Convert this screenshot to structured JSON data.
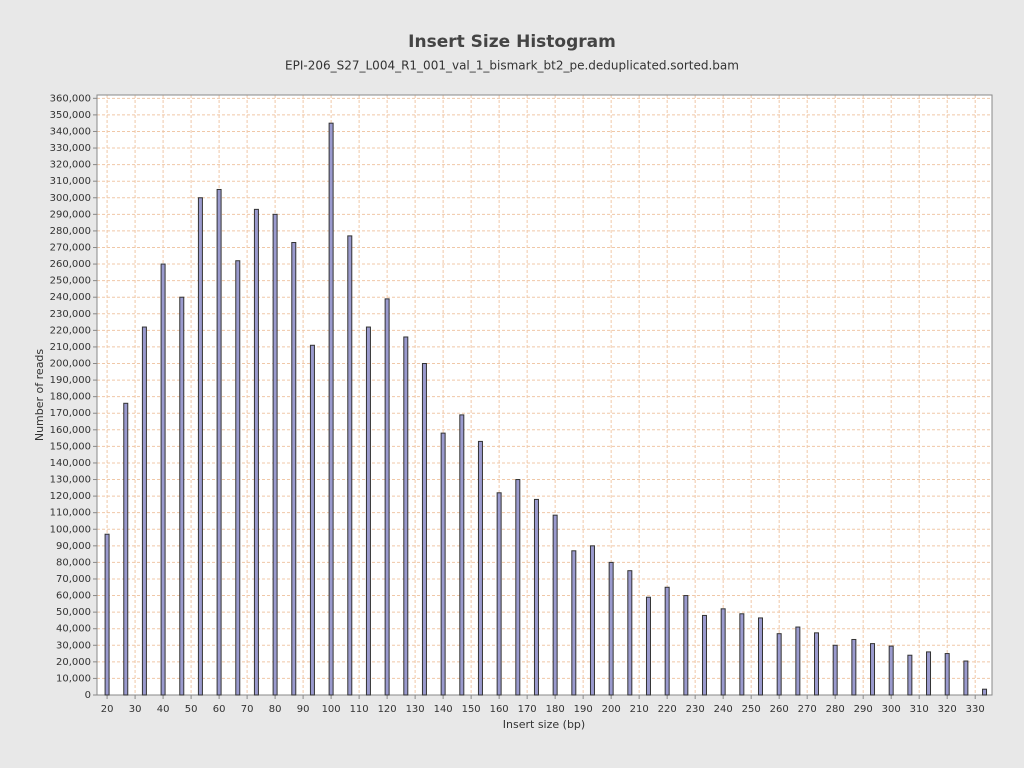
{
  "chart_data": {
    "type": "bar",
    "title": "Insert Size Histogram",
    "subtitle": "EPI-206_S27_L004_R1_001_val_1_bismark_bt2_pe.deduplicated.sorted.bam",
    "x_label": "Insert size (bp)",
    "y_label": "Number of reads",
    "x": [
      20,
      26.67,
      33.33,
      40,
      46.67,
      53.33,
      60,
      66.67,
      73.33,
      80,
      86.67,
      93.33,
      100,
      106.67,
      113.33,
      120,
      126.67,
      133.33,
      140,
      146.67,
      153.33,
      160,
      166.67,
      173.33,
      180,
      186.67,
      193.33,
      200,
      206.67,
      213.33,
      220,
      226.67,
      233.33,
      240,
      246.67,
      253.33,
      260,
      266.67,
      273.33,
      280,
      286.67,
      293.33,
      300,
      306.67,
      313.33,
      320,
      326.67,
      333.33
    ],
    "values": [
      97000,
      176000,
      222000,
      260000,
      240000,
      300000,
      305000,
      262000,
      293000,
      290000,
      273000,
      211000,
      345000,
      277000,
      222000,
      239000,
      216000,
      200000,
      158000,
      169000,
      153000,
      122000,
      130000,
      118000,
      108500,
      87000,
      90000,
      80000,
      75000,
      59000,
      65000,
      60000,
      48000,
      52000,
      49000,
      46500,
      37000,
      41000,
      37500,
      30000,
      33500,
      31000,
      29500,
      24000,
      26000,
      25000,
      20500,
      3500
    ],
    "color": "#9a9ace",
    "xlim": [
      16.4,
      336
    ],
    "xticks": [
      20,
      30,
      40,
      50,
      60,
      70,
      80,
      90,
      100,
      110,
      120,
      130,
      140,
      150,
      160,
      170,
      180,
      190,
      200,
      210,
      220,
      230,
      240,
      250,
      260,
      270,
      280,
      290,
      300,
      310,
      320,
      330
    ],
    "ylim": [
      0,
      362000
    ],
    "yticks": [
      0,
      {
        "value": 10000,
        "label": "10,000"
      },
      {
        "value": 20000,
        "label": "20,000"
      },
      {
        "value": 30000,
        "label": "30,000"
      },
      {
        "value": 40000,
        "label": "40,000"
      },
      {
        "value": 50000,
        "label": "50,000"
      },
      {
        "value": 60000,
        "label": "60,000"
      },
      {
        "value": 70000,
        "label": "70,000"
      },
      {
        "value": 80000,
        "label": "80,000"
      },
      {
        "value": 90000,
        "label": "90,000"
      },
      {
        "value": 100000,
        "label": "100,000"
      },
      {
        "value": 110000,
        "label": "110,000"
      },
      {
        "value": 120000,
        "label": "120,000"
      },
      {
        "value": 130000,
        "label": "130,000"
      },
      {
        "value": 140000,
        "label": "140,000"
      },
      {
        "value": 150000,
        "label": "150,000"
      },
      {
        "value": 160000,
        "label": "160,000"
      },
      {
        "value": 170000,
        "label": "170,000"
      },
      {
        "value": 180000,
        "label": "180,000"
      },
      {
        "value": 190000,
        "label": "190,000"
      },
      {
        "value": 200000,
        "label": "200,000"
      },
      {
        "value": 210000,
        "label": "210,000"
      },
      {
        "value": 220000,
        "label": "220,000"
      },
      {
        "value": 230000,
        "label": "230,000"
      },
      {
        "value": 240000,
        "label": "240,000"
      },
      {
        "value": 250000,
        "label": "250,000"
      },
      {
        "value": 260000,
        "label": "260,000"
      },
      {
        "value": 270000,
        "label": "270,000"
      },
      {
        "value": 280000,
        "label": "280,000"
      },
      {
        "value": 290000,
        "label": "290,000"
      },
      {
        "value": 300000,
        "label": "300,000"
      },
      {
        "value": 310000,
        "label": "310,000"
      },
      {
        "value": 320000,
        "label": "320,000"
      },
      {
        "value": 330000,
        "label": "330,000"
      },
      {
        "value": 340000,
        "label": "340,000"
      },
      {
        "value": 350000,
        "label": "350,000"
      },
      {
        "value": 360000,
        "label": "360,000"
      }
    ],
    "grid": true
  }
}
